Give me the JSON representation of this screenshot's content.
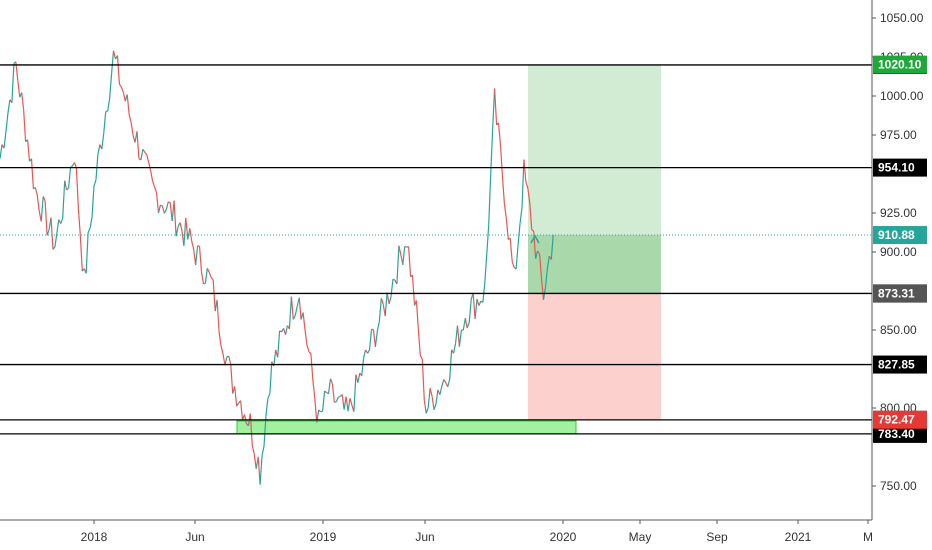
{
  "chart_data": {
    "type": "candlestick",
    "title": "",
    "xlabel": "",
    "ylabel": "",
    "y_axis_side": "right",
    "ylim": [
      735,
      1060
    ],
    "grid": false,
    "x_ticks": [
      "2018",
      "Jun",
      "2019",
      "Jun",
      "2020",
      "May",
      "Sep",
      "2021",
      "M"
    ],
    "y_ticks": [
      "750.00",
      "800.00",
      "850.00",
      "900.00",
      "925.00",
      "975.00",
      "1000.00",
      "1025.00",
      "1050.00"
    ],
    "y_tick_values": [
      750,
      800,
      850,
      900,
      925,
      975,
      1000,
      1025,
      1050
    ],
    "current_price": 910.88,
    "colors": {
      "up": "#26a69a",
      "down": "#ef5350",
      "line": "#000000",
      "green_zone": "#4caf50",
      "red_zone": "#f44336",
      "support_box": "#90ee90"
    },
    "series_path": [
      {
        "t": "2017-07",
        "v": 960
      },
      {
        "t": "2017-09",
        "v": 1020
      },
      {
        "t": "2017-10",
        "v": 940
      },
      {
        "t": "2017-11",
        "v": 905
      },
      {
        "t": "2017-12",
        "v": 965
      },
      {
        "t": "2017-12",
        "v": 880
      },
      {
        "t": "2018-01",
        "v": 940
      },
      {
        "t": "2018-02",
        "v": 1025
      },
      {
        "t": "2018-03",
        "v": 980
      },
      {
        "t": "2018-04",
        "v": 940
      },
      {
        "t": "2018-05",
        "v": 925
      },
      {
        "t": "2018-06",
        "v": 905
      },
      {
        "t": "2018-07",
        "v": 880
      },
      {
        "t": "2018-08",
        "v": 820
      },
      {
        "t": "2018-09",
        "v": 790
      },
      {
        "t": "2018-09",
        "v": 760
      },
      {
        "t": "2018-10",
        "v": 820
      },
      {
        "t": "2018-11",
        "v": 860
      },
      {
        "t": "2018-11",
        "v": 875
      },
      {
        "t": "2018-12",
        "v": 835
      },
      {
        "t": "2018-12",
        "v": 790
      },
      {
        "t": "2019-01",
        "v": 810
      },
      {
        "t": "2019-02",
        "v": 795
      },
      {
        "t": "2019-03",
        "v": 835
      },
      {
        "t": "2019-04",
        "v": 870
      },
      {
        "t": "2019-05",
        "v": 910
      },
      {
        "t": "2019-05",
        "v": 860
      },
      {
        "t": "2019-06",
        "v": 800
      },
      {
        "t": "2019-07",
        "v": 820
      },
      {
        "t": "2019-08",
        "v": 860
      },
      {
        "t": "2019-09",
        "v": 875
      },
      {
        "t": "2019-09",
        "v": 995
      },
      {
        "t": "2019-10",
        "v": 940
      },
      {
        "t": "2019-10",
        "v": 880
      },
      {
        "t": "2019-11",
        "v": 950
      },
      {
        "t": "2019-12",
        "v": 873
      },
      {
        "t": "2019-12",
        "v": 911
      }
    ],
    "horizontal_levels": [
      {
        "label": "1019.90",
        "value": 1019.9,
        "style": "dark"
      },
      {
        "label": "954.10",
        "value": 954.1,
        "style": "dark"
      },
      {
        "label": "873.45",
        "value": 873.45,
        "style": "dark"
      },
      {
        "label": "827.85",
        "value": 827.85,
        "style": "dark"
      },
      {
        "label": "792.40",
        "value": 792.4,
        "style": "dark"
      },
      {
        "label": "783.40",
        "value": 783.4,
        "style": "dark"
      }
    ],
    "price_badges": [
      {
        "label": "1020.10",
        "value": 1020.1,
        "bg": "#1ea83a",
        "fg": "#ffffff"
      },
      {
        "label": "910.88",
        "value": 910.88,
        "bg": "#26a69a",
        "fg": "#ffffff"
      },
      {
        "label": "873.31",
        "value": 873.31,
        "bg": "#555555",
        "fg": "#ffffff"
      },
      {
        "label": "792.47",
        "value": 792.47,
        "bg": "#e53935",
        "fg": "#ffffff"
      }
    ],
    "position": {
      "entry": 873.31,
      "target": 1020.1,
      "stop": 792.47
    }
  }
}
